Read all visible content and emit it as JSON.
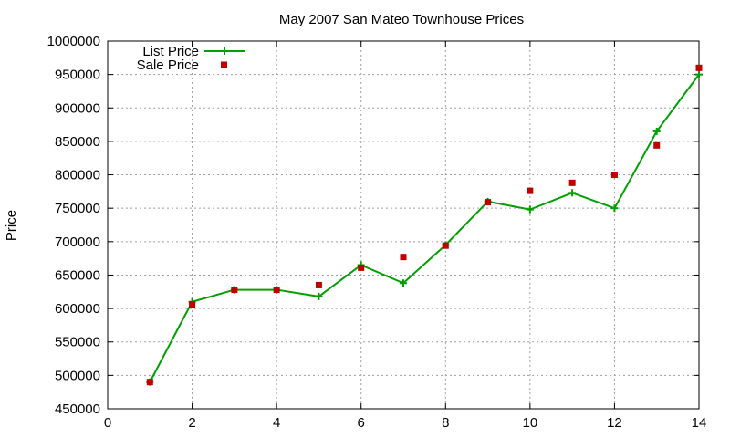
{
  "chart_data": {
    "type": "line",
    "title": "May 2007 San Mateo Townhouse Prices",
    "xlabel": "",
    "ylabel": "Price",
    "xlim": [
      0,
      14
    ],
    "ylim": [
      450000,
      1000000
    ],
    "xticks": [
      0,
      2,
      4,
      6,
      8,
      10,
      12,
      14
    ],
    "yticks": [
      450000,
      500000,
      550000,
      600000,
      650000,
      700000,
      750000,
      800000,
      850000,
      900000,
      950000,
      1000000
    ],
    "grid": true,
    "legend": "top-left",
    "series": [
      {
        "name": "List Price",
        "style": "linespoints",
        "marker": "plus",
        "color": "#00a000",
        "x": [
          1,
          2,
          3,
          4,
          5,
          6,
          7,
          8,
          9,
          10,
          11,
          12,
          13,
          14
        ],
        "values": [
          490000,
          610000,
          628000,
          628000,
          618000,
          665000,
          638000,
          695000,
          760000,
          748000,
          773000,
          750000,
          865000,
          950000
        ]
      },
      {
        "name": "Sale Price",
        "style": "points",
        "marker": "square",
        "color": "#c00000",
        "x": [
          1,
          2,
          3,
          4,
          5,
          6,
          7,
          8,
          9,
          10,
          11,
          12,
          13,
          14
        ],
        "values": [
          490000,
          606000,
          628000,
          628000,
          635000,
          661000,
          677000,
          694000,
          759000,
          776000,
          788000,
          800000,
          844000,
          960000
        ]
      }
    ]
  }
}
